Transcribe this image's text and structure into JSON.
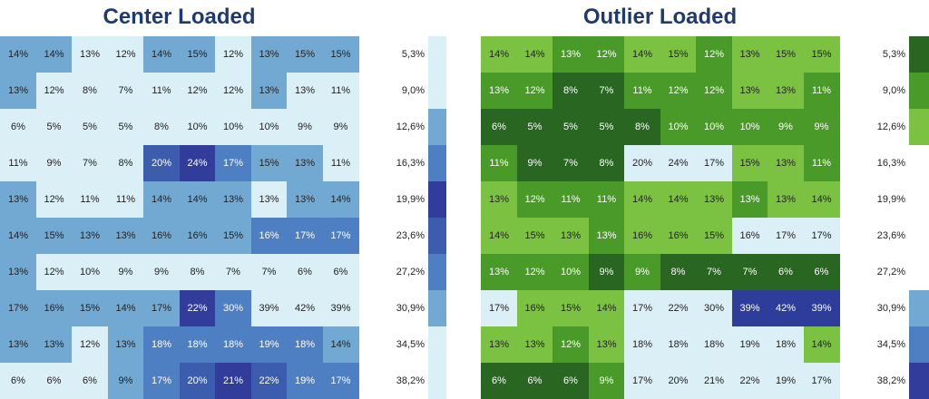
{
  "chart_data": [
    {
      "type": "heatmap",
      "title": "Center Loaded",
      "cells": [
        [
          "14%",
          "14%",
          "13%",
          "12%",
          "14%",
          "15%",
          "12%",
          "13%",
          "15%",
          "15%"
        ],
        [
          "13%",
          "12%",
          "8%",
          "7%",
          "11%",
          "12%",
          "12%",
          "13%",
          "13%",
          "11%"
        ],
        [
          "6%",
          "5%",
          "5%",
          "5%",
          "8%",
          "10%",
          "10%",
          "10%",
          "9%",
          "9%"
        ],
        [
          "11%",
          "9%",
          "7%",
          "8%",
          "20%",
          "24%",
          "17%",
          "15%",
          "13%",
          "11%"
        ],
        [
          "13%",
          "12%",
          "11%",
          "11%",
          "14%",
          "14%",
          "13%",
          "13%",
          "13%",
          "14%"
        ],
        [
          "14%",
          "15%",
          "13%",
          "13%",
          "16%",
          "16%",
          "15%",
          "16%",
          "17%",
          "17%"
        ],
        [
          "13%",
          "12%",
          "10%",
          "9%",
          "9%",
          "8%",
          "7%",
          "7%",
          "6%",
          "6%"
        ],
        [
          "17%",
          "16%",
          "15%",
          "14%",
          "17%",
          "22%",
          "30%",
          "39%",
          "42%",
          "39%"
        ],
        [
          "13%",
          "13%",
          "12%",
          "13%",
          "18%",
          "18%",
          "18%",
          "19%",
          "18%",
          "14%"
        ],
        [
          "6%",
          "6%",
          "6%",
          "9%",
          "17%",
          "20%",
          "21%",
          "22%",
          "19%",
          "17%"
        ]
      ],
      "levels": [
        [
          2,
          2,
          1,
          1,
          2,
          2,
          1,
          2,
          2,
          2
        ],
        [
          2,
          1,
          1,
          1,
          1,
          1,
          1,
          2,
          1,
          1
        ],
        [
          1,
          1,
          1,
          1,
          1,
          1,
          1,
          1,
          1,
          1
        ],
        [
          1,
          1,
          1,
          1,
          4,
          5,
          3,
          2,
          2,
          1
        ],
        [
          2,
          1,
          1,
          1,
          2,
          2,
          2,
          1,
          2,
          2
        ],
        [
          2,
          2,
          2,
          2,
          2,
          2,
          2,
          3,
          3,
          3
        ],
        [
          2,
          1,
          1,
          1,
          1,
          1,
          1,
          1,
          1,
          1
        ],
        [
          2,
          2,
          2,
          2,
          2,
          5,
          3,
          1,
          1,
          1
        ],
        [
          2,
          2,
          1,
          2,
          3,
          3,
          3,
          3,
          3,
          2
        ],
        [
          1,
          1,
          1,
          2,
          3,
          4,
          5,
          4,
          3,
          3
        ]
      ],
      "palette": [
        "#ffffff",
        "#dbeff6",
        "#72a9d2",
        "#4f7fc3",
        "#3c5cae",
        "#313c9b"
      ],
      "scale_labels": [
        "5,3%",
        "9,0%",
        "12,6%",
        "16,3%",
        "19,9%",
        "23,6%",
        "27,2%",
        "30,9%",
        "34,5%",
        "38,2%"
      ],
      "scale_colors": [
        "#dbeff6",
        "#dbeff6",
        "#72a9d2",
        "#4f7fc3",
        "#313c9b",
        "#3c5cae",
        "#4f7fc3",
        "#72a9d2",
        "#dbeff6",
        "#dbeff6"
      ]
    },
    {
      "type": "heatmap",
      "title": "Outlier Loaded",
      "cells": [
        [
          "14%",
          "14%",
          "13%",
          "12%",
          "14%",
          "15%",
          "12%",
          "13%",
          "15%",
          "15%"
        ],
        [
          "13%",
          "12%",
          "8%",
          "7%",
          "11%",
          "12%",
          "12%",
          "13%",
          "13%",
          "11%"
        ],
        [
          "6%",
          "5%",
          "5%",
          "5%",
          "8%",
          "10%",
          "10%",
          "10%",
          "9%",
          "9%"
        ],
        [
          "11%",
          "9%",
          "7%",
          "8%",
          "20%",
          "24%",
          "17%",
          "15%",
          "13%",
          "11%"
        ],
        [
          "13%",
          "12%",
          "11%",
          "11%",
          "14%",
          "14%",
          "13%",
          "13%",
          "13%",
          "14%"
        ],
        [
          "14%",
          "15%",
          "13%",
          "13%",
          "16%",
          "16%",
          "15%",
          "16%",
          "17%",
          "17%"
        ],
        [
          "13%",
          "12%",
          "10%",
          "9%",
          "9%",
          "8%",
          "7%",
          "7%",
          "6%",
          "6%"
        ],
        [
          "17%",
          "16%",
          "15%",
          "14%",
          "17%",
          "22%",
          "30%",
          "39%",
          "42%",
          "39%"
        ],
        [
          "13%",
          "13%",
          "12%",
          "13%",
          "18%",
          "18%",
          "18%",
          "19%",
          "18%",
          "14%"
        ],
        [
          "6%",
          "6%",
          "6%",
          "9%",
          "17%",
          "20%",
          "21%",
          "22%",
          "19%",
          "17%"
        ]
      ],
      "levels": [
        [
          2,
          2,
          3,
          3,
          2,
          2,
          3,
          2,
          2,
          2
        ],
        [
          3,
          3,
          4,
          4,
          3,
          3,
          3,
          2,
          2,
          3
        ],
        [
          4,
          4,
          4,
          4,
          4,
          3,
          3,
          3,
          3,
          3
        ],
        [
          3,
          4,
          4,
          4,
          1,
          1,
          1,
          2,
          2,
          3
        ],
        [
          2,
          3,
          3,
          3,
          2,
          2,
          2,
          3,
          2,
          2
        ],
        [
          2,
          2,
          2,
          3,
          2,
          2,
          2,
          1,
          1,
          1
        ],
        [
          3,
          3,
          3,
          4,
          3,
          4,
          4,
          4,
          4,
          4
        ],
        [
          1,
          2,
          2,
          2,
          1,
          1,
          1,
          5,
          5,
          5
        ],
        [
          2,
          2,
          3,
          2,
          1,
          1,
          1,
          1,
          1,
          2
        ],
        [
          4,
          4,
          4,
          3,
          1,
          1,
          1,
          1,
          1,
          1
        ]
      ],
      "palette": [
        "#ffffff",
        "#dbeff6",
        "#7cc242",
        "#4a9a2a",
        "#286621",
        "#2e3c9a"
      ],
      "scale_labels": [
        "5,3%",
        "9,0%",
        "12,6%",
        "16,3%",
        "19,9%",
        "23,6%",
        "27,2%",
        "30,9%",
        "34,5%",
        "38,2%"
      ],
      "scale_colors": [
        "#286621",
        "#4a9a2a",
        "#7cc242",
        "#ffffff",
        "#ffffff",
        "#ffffff",
        "#ffffff",
        "#72a9d2",
        "#4f7fc3",
        "#313c9b"
      ]
    }
  ]
}
